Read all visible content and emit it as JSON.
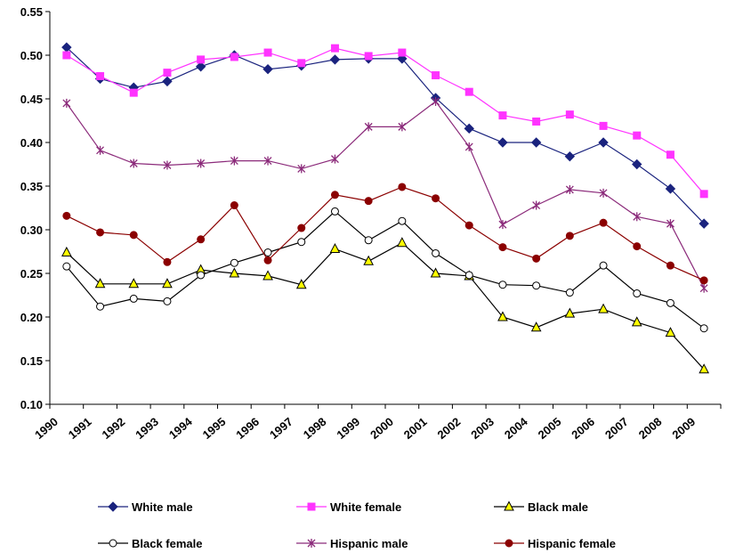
{
  "chart_data": {
    "type": "line",
    "title": "",
    "xlabel": "",
    "ylabel": "",
    "ylim": [
      0.1,
      0.55
    ],
    "yticks": [
      0.1,
      0.15,
      0.2,
      0.25,
      0.3,
      0.35,
      0.4,
      0.45,
      0.5,
      0.55
    ],
    "ytick_labels": [
      "0.10",
      "0.15",
      "0.20",
      "0.25",
      "0.30",
      "0.35",
      "0.40",
      "0.45",
      "0.50",
      "0.55"
    ],
    "grid": false,
    "legend_position": "bottom",
    "x": [
      "1990",
      "1991",
      "1992",
      "1993",
      "1994",
      "1995",
      "1996",
      "1997",
      "1998",
      "1999",
      "2000",
      "2001",
      "2002",
      "2003",
      "2004",
      "2005",
      "2006",
      "2007",
      "2008",
      "2009"
    ],
    "series": [
      {
        "name": "White male",
        "color": "#1a237e",
        "marker": "diamond",
        "values": [
          0.509,
          0.473,
          0.463,
          0.47,
          0.487,
          0.5,
          0.484,
          0.488,
          0.495,
          0.496,
          0.496,
          0.451,
          0.416,
          0.4,
          0.4,
          0.384,
          0.4,
          0.375,
          0.347,
          0.307
        ]
      },
      {
        "name": "White female",
        "color": "#ff33ff",
        "marker": "square",
        "values": [
          0.5,
          0.476,
          0.457,
          0.48,
          0.495,
          0.498,
          0.503,
          0.491,
          0.508,
          0.499,
          0.503,
          0.477,
          0.458,
          0.431,
          0.424,
          0.432,
          0.419,
          0.408,
          0.386,
          0.341
        ]
      },
      {
        "name": "Black male",
        "color": "#000000",
        "marker": "triangle",
        "values": [
          0.274,
          0.238,
          0.238,
          0.238,
          0.254,
          0.25,
          0.247,
          0.237,
          0.278,
          0.264,
          0.285,
          0.25,
          0.247,
          0.2,
          0.188,
          0.204,
          0.209,
          0.194,
          0.182,
          0.14
        ]
      },
      {
        "name": "Black female",
        "color": "#000000",
        "marker": "circle-open",
        "values": [
          0.258,
          0.212,
          0.221,
          0.218,
          0.248,
          0.262,
          0.274,
          0.286,
          0.321,
          0.288,
          0.31,
          0.273,
          0.248,
          0.237,
          0.236,
          0.228,
          0.259,
          0.227,
          0.216,
          0.187
        ]
      },
      {
        "name": "Hispanic male",
        "color": "#8b2a7a",
        "marker": "star",
        "values": [
          0.445,
          0.391,
          0.376,
          0.374,
          0.376,
          0.379,
          0.379,
          0.37,
          0.381,
          0.418,
          0.418,
          0.447,
          0.395,
          0.306,
          0.328,
          0.346,
          0.342,
          0.315,
          0.307,
          0.233
        ]
      },
      {
        "name": "Hispanic female",
        "color": "#8b0000",
        "marker": "circle",
        "values": [
          0.316,
          0.297,
          0.294,
          0.263,
          0.289,
          0.328,
          0.265,
          0.302,
          0.34,
          0.333,
          0.349,
          0.336,
          0.305,
          0.28,
          0.267,
          0.293,
          0.308,
          0.281,
          0.259,
          0.242
        ]
      }
    ]
  }
}
